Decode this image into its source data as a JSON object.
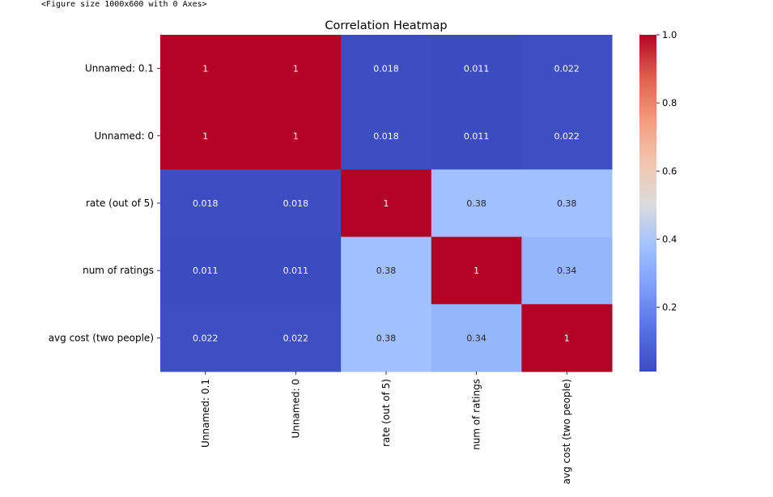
{
  "figure_note": "<Figure size 1000x600 with 0 Axes>",
  "chart_data": {
    "type": "heatmap",
    "title": "Correlation Heatmap",
    "colormap": "coolwarm",
    "rows": [
      "Unnamed: 0.1",
      "Unnamed: 0",
      "rate (out of 5)",
      "num of ratings",
      "avg cost (two people)"
    ],
    "columns": [
      "Unnamed: 0.1",
      "Unnamed: 0",
      "rate (out of 5)",
      "num of ratings",
      "avg cost (two people)"
    ],
    "values": [
      [
        1,
        1,
        0.018,
        0.011,
        0.022
      ],
      [
        1,
        1,
        0.018,
        0.011,
        0.022
      ],
      [
        0.018,
        0.018,
        1,
        0.38,
        0.38
      ],
      [
        0.011,
        0.011,
        0.38,
        1,
        0.34
      ],
      [
        0.022,
        0.022,
        0.38,
        0.34,
        1
      ]
    ],
    "annotations": [
      [
        "1",
        "1",
        "0.018",
        "0.011",
        "0.022"
      ],
      [
        "1",
        "1",
        "0.018",
        "0.011",
        "0.022"
      ],
      [
        "0.018",
        "0.018",
        "1",
        "0.38",
        "0.38"
      ],
      [
        "0.011",
        "0.011",
        "0.38",
        "1",
        "0.34"
      ],
      [
        "0.022",
        "0.022",
        "0.38",
        "0.34",
        "1"
      ]
    ],
    "colorbar": {
      "range": [
        0.011,
        1.0
      ],
      "ticks": [
        0.2,
        0.4,
        0.6,
        0.8,
        1.0
      ],
      "tick_labels": [
        "0.2",
        "0.4",
        "0.6",
        "0.8",
        "1.0"
      ]
    }
  }
}
